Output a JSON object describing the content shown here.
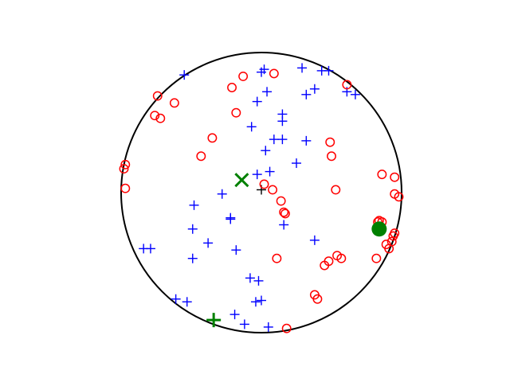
{
  "chart_data": {
    "type": "scatter",
    "title": "",
    "xlabel": "",
    "ylabel": "",
    "xlim": [
      -1.05,
      1.05
    ],
    "ylim": [
      -1.05,
      1.05
    ],
    "grid": false,
    "axes_visible": false,
    "boundary_circle": {
      "center": [
        0,
        0
      ],
      "radius": 1,
      "color": "#000000"
    },
    "series": [
      {
        "marker": "plus",
        "color": "#0000ff",
        "points": [
          [
            -0.55,
            0.84
          ],
          [
            0.02,
            0.88
          ],
          [
            0.0,
            0.86
          ],
          [
            0.29,
            0.89
          ],
          [
            0.43,
            0.87
          ],
          [
            0.48,
            0.87
          ],
          [
            0.38,
            0.74
          ],
          [
            0.32,
            0.7
          ],
          [
            0.04,
            0.72
          ],
          [
            -0.03,
            0.65
          ],
          [
            0.61,
            0.72
          ],
          [
            0.67,
            0.7
          ],
          [
            0.15,
            0.56
          ],
          [
            0.15,
            0.51
          ],
          [
            -0.07,
            0.47
          ],
          [
            0.09,
            0.38
          ],
          [
            0.15,
            0.38
          ],
          [
            0.32,
            0.37
          ],
          [
            0.03,
            0.3
          ],
          [
            0.25,
            0.21
          ],
          [
            0.06,
            0.15
          ],
          [
            -0.03,
            0.13
          ],
          [
            -0.28,
            -0.01
          ],
          [
            -0.22,
            -0.18
          ],
          [
            -0.22,
            -0.19
          ],
          [
            0.16,
            -0.23
          ],
          [
            -0.48,
            -0.09
          ],
          [
            -0.49,
            -0.26
          ],
          [
            -0.38,
            -0.36
          ],
          [
            0.38,
            -0.34
          ],
          [
            -0.84,
            -0.4
          ],
          [
            -0.79,
            -0.4
          ],
          [
            -0.49,
            -0.47
          ],
          [
            -0.18,
            -0.41
          ],
          [
            -0.08,
            -0.61
          ],
          [
            -0.02,
            -0.63
          ],
          [
            -0.61,
            -0.76
          ],
          [
            -0.53,
            -0.78
          ],
          [
            -0.04,
            -0.78
          ],
          [
            0.0,
            -0.77
          ],
          [
            -0.19,
            -0.87
          ],
          [
            -0.12,
            -0.94
          ],
          [
            0.05,
            -0.96
          ],
          [
            0.0,
            0.02
          ]
        ]
      },
      {
        "marker": "circle",
        "color": "#ff0000",
        "points": [
          [
            -0.13,
            0.83
          ],
          [
            0.09,
            0.85
          ],
          [
            -0.21,
            0.75
          ],
          [
            0.61,
            0.77
          ],
          [
            -0.74,
            0.69
          ],
          [
            -0.62,
            0.64
          ],
          [
            -0.76,
            0.55
          ],
          [
            -0.72,
            0.53
          ],
          [
            -0.18,
            0.57
          ],
          [
            -0.35,
            0.39
          ],
          [
            0.49,
            0.36
          ],
          [
            -0.43,
            0.26
          ],
          [
            0.5,
            0.26
          ],
          [
            -0.97,
            0.2
          ],
          [
            -0.98,
            0.17
          ],
          [
            0.86,
            0.13
          ],
          [
            0.95,
            0.11
          ],
          [
            0.02,
            0.06
          ],
          [
            0.08,
            0.02
          ],
          [
            -0.97,
            0.03
          ],
          [
            0.53,
            0.02
          ],
          [
            0.95,
            -0.01
          ],
          [
            0.98,
            -0.03
          ],
          [
            0.14,
            -0.06
          ],
          [
            0.16,
            -0.14
          ],
          [
            0.17,
            -0.15
          ],
          [
            0.84,
            -0.2
          ],
          [
            0.86,
            -0.21
          ],
          [
            0.83,
            -0.21
          ],
          [
            0.95,
            -0.29
          ],
          [
            0.94,
            -0.31
          ],
          [
            0.93,
            -0.35
          ],
          [
            0.89,
            -0.37
          ],
          [
            0.91,
            -0.4
          ],
          [
            0.54,
            -0.45
          ],
          [
            0.48,
            -0.49
          ],
          [
            0.57,
            -0.47
          ],
          [
            0.45,
            -0.52
          ],
          [
            0.11,
            -0.47
          ],
          [
            0.82,
            -0.47
          ],
          [
            0.38,
            -0.73
          ],
          [
            0.4,
            -0.76
          ],
          [
            0.18,
            -0.97
          ]
        ]
      }
    ],
    "highlights": [
      {
        "marker": "x",
        "color": "#008000",
        "point": [
          -0.14,
          0.09
        ]
      },
      {
        "marker": "filled-circle",
        "color": "#008000",
        "point": [
          0.84,
          -0.26
        ]
      },
      {
        "marker": "plus",
        "color": "#008000",
        "point": [
          -0.34,
          -0.91
        ]
      }
    ]
  }
}
